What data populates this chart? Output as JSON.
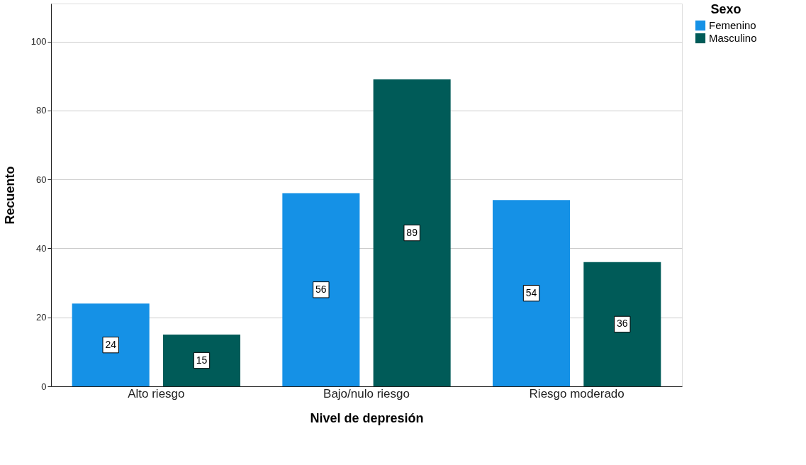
{
  "chart_data": {
    "type": "bar",
    "xlabel": "Nivel de depresión",
    "ylabel": "Recuento",
    "legend_title": "Sexo",
    "categories": [
      "Alto riesgo",
      "Bajo/nulo riesgo",
      "Riesgo moderado"
    ],
    "series": [
      {
        "name": "Femenino",
        "color": "#1591e6",
        "values": [
          24,
          56,
          54
        ]
      },
      {
        "name": "Masculino",
        "color": "#005b58",
        "values": [
          15,
          89,
          36
        ]
      }
    ],
    "ylim": [
      0,
      111
    ],
    "yticks": [
      0,
      20,
      40,
      60,
      80,
      100
    ],
    "grid": "y",
    "legend": "top right",
    "data_labels": true
  }
}
